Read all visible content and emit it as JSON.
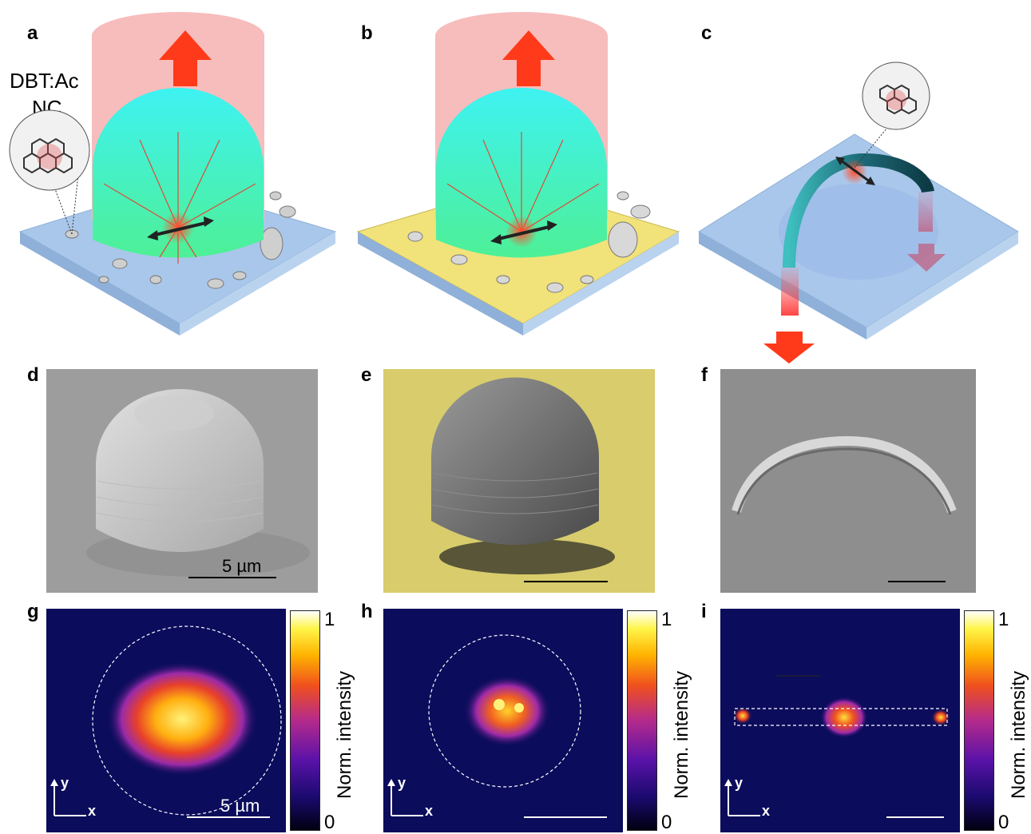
{
  "panel_labels": {
    "a": "a",
    "b": "b",
    "c": "c",
    "d": "d",
    "e": "e",
    "f": "f",
    "g": "g",
    "h": "h",
    "i": "i"
  },
  "panel_a": {
    "annotation_line1": "DBT:Ac",
    "annotation_line2": "NC"
  },
  "sem": {
    "scalebar_label": "5 µm"
  },
  "pl": {
    "scalebar_label": "5 µm",
    "axis_y": "y",
    "axis_x": "x",
    "colorbar_max": "1",
    "colorbar_min": "0",
    "colorbar_label": "Norm. intensity"
  },
  "colors": {
    "arrow_red": "#ff3a1a",
    "dome_top": "#3ef2f2",
    "dome_bottom": "#4ef096",
    "substrate": "#a9c7ea",
    "gold": "#f1e27a",
    "beam": "#f7bcbc",
    "pl_background": "#0b0c5c"
  }
}
